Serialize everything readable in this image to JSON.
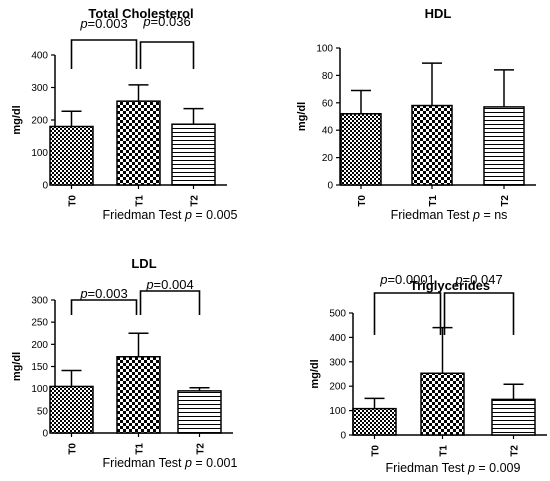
{
  "chart_data": [
    {
      "type": "bar",
      "title": "Total Cholesterol",
      "ylabel": "mg/dl",
      "categories": [
        "T0",
        "T1",
        "T2"
      ],
      "values": [
        180,
        258,
        187
      ],
      "errors": [
        47,
        50,
        48
      ],
      "ylim": [
        0,
        400
      ],
      "yticks": [
        0,
        100,
        200,
        300,
        400
      ],
      "comparisons": [
        {
          "from": "T0",
          "to": "T1",
          "label_prefix": "p",
          "label_value": "=0.003"
        },
        {
          "from": "T1",
          "to": "T2",
          "label_prefix": "p",
          "label_value": "=0.036"
        }
      ],
      "test_label": "Friedman Test ",
      "test_p": "p",
      "test_value": " = 0.005"
    },
    {
      "type": "bar",
      "title": "HDL",
      "ylabel": "mg/dl",
      "categories": [
        "T0",
        "T1",
        "T2"
      ],
      "values": [
        52,
        58,
        57
      ],
      "errors": [
        17,
        31,
        27
      ],
      "ylim": [
        0,
        100
      ],
      "yticks": [
        0,
        20,
        40,
        60,
        80,
        100
      ],
      "comparisons": [],
      "test_label": "Friedman Test ",
      "test_p": "p",
      "test_value": " = ns"
    },
    {
      "type": "bar",
      "title": "LDL",
      "ylabel": "mg/dl",
      "categories": [
        "T0",
        "T1",
        "T2"
      ],
      "values": [
        105,
        172,
        95
      ],
      "errors": [
        36,
        53,
        7
      ],
      "ylim": [
        0,
        300
      ],
      "yticks": [
        0,
        50,
        100,
        150,
        200,
        250,
        300
      ],
      "comparisons": [
        {
          "from": "T0",
          "to": "T1",
          "label_prefix": "p",
          "label_value": "=0.003"
        },
        {
          "from": "T1",
          "to": "T2",
          "label_prefix": "p",
          "label_value": "=0.004"
        }
      ],
      "test_label": "Friedman Test ",
      "test_p": "p",
      "test_value": " = 0.001"
    },
    {
      "type": "bar",
      "title": "Triglycerides",
      "ylabel": "mg/dl",
      "categories": [
        "T0",
        "T1",
        "T2"
      ],
      "values": [
        108,
        253,
        146
      ],
      "errors": [
        42,
        187,
        62
      ],
      "ylim": [
        0,
        500
      ],
      "yticks": [
        0,
        100,
        200,
        300,
        400,
        500
      ],
      "comparisons": [
        {
          "from": "T0",
          "to": "T1",
          "label_prefix": "p",
          "label_value": "=0.0001"
        },
        {
          "from": "T1",
          "to": "T2",
          "label_prefix": "p",
          "label_value": "=0.047"
        }
      ],
      "test_label": "Friedman Test ",
      "test_p": "p",
      "test_value": " = 0.009"
    }
  ]
}
